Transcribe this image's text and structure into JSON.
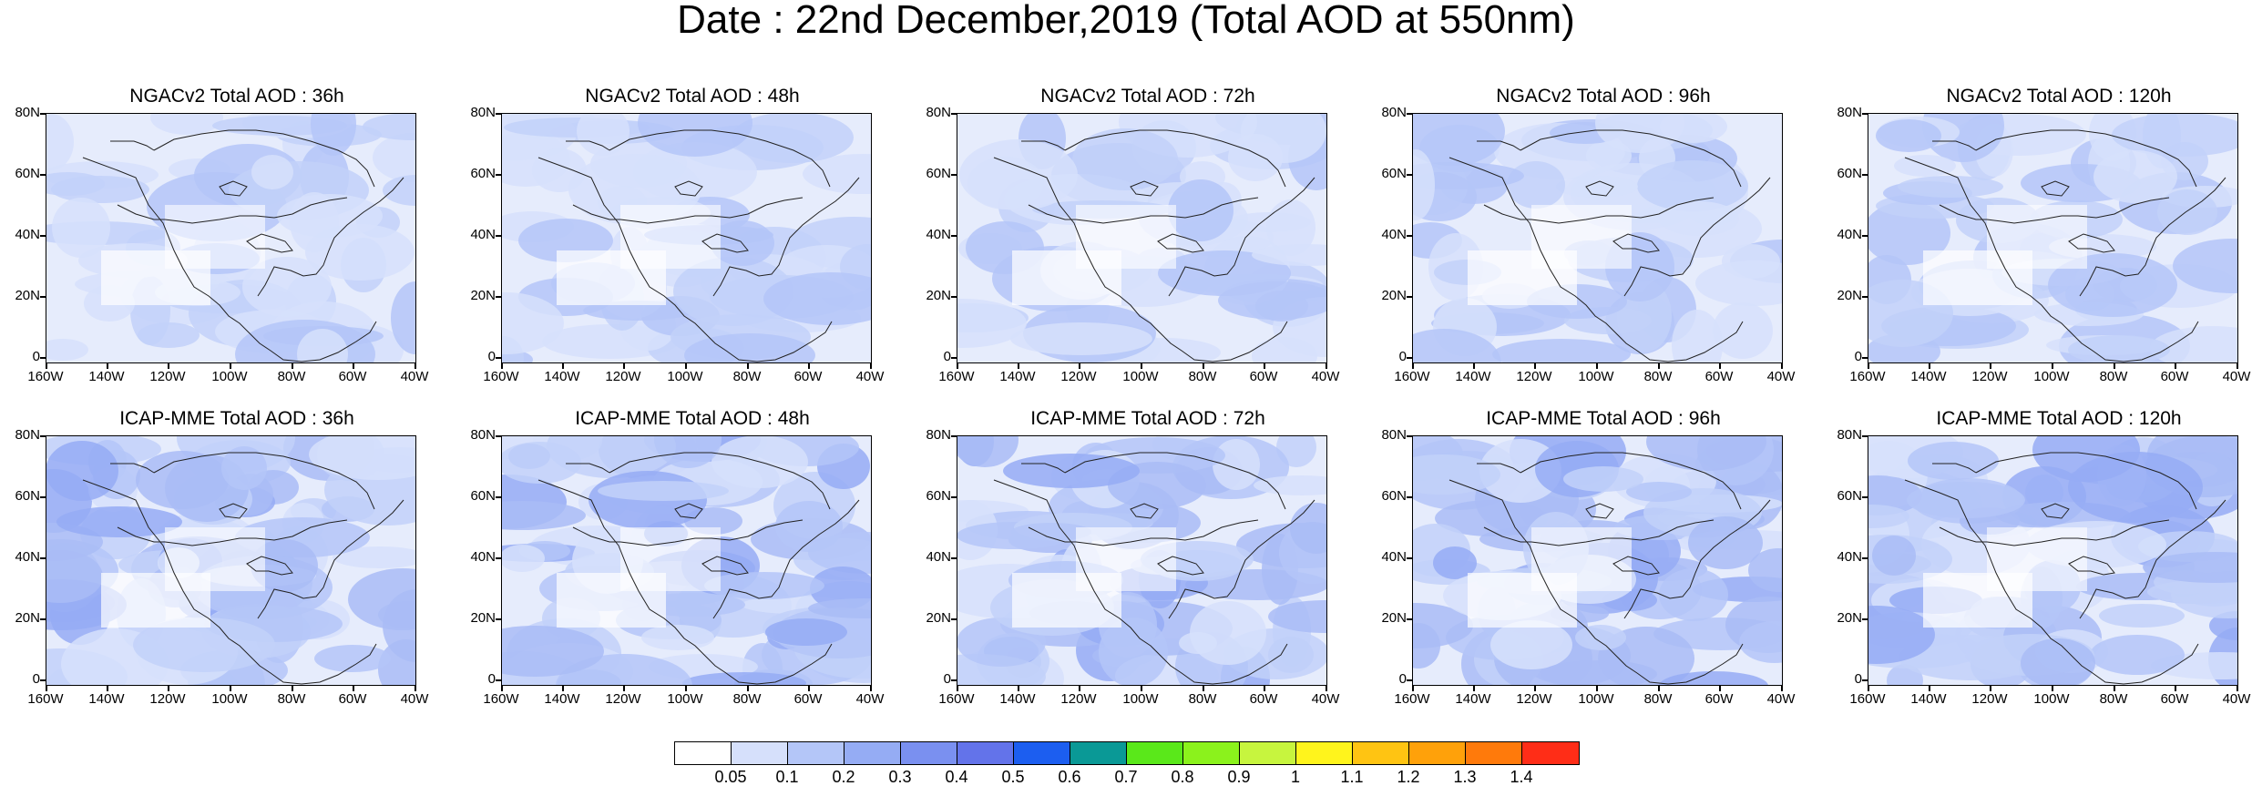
{
  "title": "Date : 22nd December,2019 (Total AOD at 550nm)",
  "panels": [
    {
      "title": "NGACv2 Total AOD : 36h"
    },
    {
      "title": "NGACv2 Total AOD : 48h"
    },
    {
      "title": "NGACv2 Total AOD : 72h"
    },
    {
      "title": "NGACv2 Total AOD : 96h"
    },
    {
      "title": "NGACv2 Total AOD : 120h"
    },
    {
      "title": "ICAP-MME Total AOD : 36h"
    },
    {
      "title": "ICAP-MME Total AOD : 48h"
    },
    {
      "title": "ICAP-MME Total AOD : 72h"
    },
    {
      "title": "ICAP-MME Total AOD : 96h"
    },
    {
      "title": "ICAP-MME Total AOD : 120h"
    }
  ],
  "lat_labels": [
    "80N",
    "60N",
    "40N",
    "20N",
    "0"
  ],
  "lon_labels": [
    "160W",
    "140W",
    "120W",
    "100W",
    "80W",
    "60W",
    "40W"
  ],
  "colorbar": {
    "colors": [
      "#ffffff",
      "#d6e0fb",
      "#b4c6f8",
      "#95acf4",
      "#7a90f0",
      "#6373ea",
      "#1c5ef0",
      "#0a9996",
      "#5ae81a",
      "#8bf21c",
      "#c7f53e",
      "#fff41c",
      "#ffc412",
      "#ffa10a",
      "#ff7a0b",
      "#ff2d17"
    ],
    "labels": [
      "0.05",
      "0.1",
      "0.2",
      "0.3",
      "0.4",
      "0.5",
      "0.6",
      "0.7",
      "0.8",
      "0.9",
      "1",
      "1.1",
      "1.2",
      "1.3",
      "1.4"
    ]
  }
}
